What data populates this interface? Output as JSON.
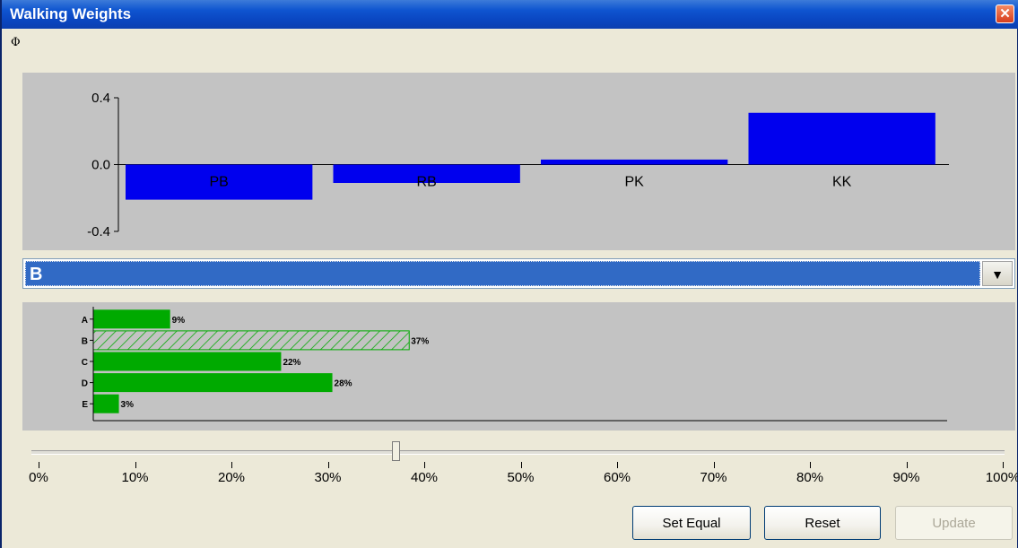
{
  "window": {
    "title": "Walking Weights",
    "close_glyph": "✕",
    "phi_symbol": "Φ"
  },
  "chart_data": [
    {
      "type": "bar",
      "categories": [
        "PB",
        "RB",
        "PK",
        "KK"
      ],
      "values": [
        -0.21,
        -0.11,
        0.03,
        0.31
      ],
      "ylim": [
        -0.4,
        0.4
      ],
      "yticks": [
        0.4,
        0.0,
        -0.4
      ],
      "ytick_labels": [
        "0.4",
        "0.0",
        "-0.4"
      ],
      "bar_color": "#0000ee",
      "background": "#c3c3c3",
      "grid": false
    },
    {
      "type": "bar",
      "orientation": "horizontal",
      "categories": [
        "A",
        "B",
        "C",
        "D",
        "E"
      ],
      "values": [
        9,
        37,
        22,
        28,
        3
      ],
      "value_labels": [
        "9%",
        "37%",
        "22%",
        "28%",
        "3%"
      ],
      "xlim": [
        0,
        100
      ],
      "selected_category": "B",
      "bar_color": "#00aa00",
      "selected_pattern": "hatched",
      "background": "#c3c3c3",
      "grid": false
    }
  ],
  "combo": {
    "selected": "B",
    "arrow_glyph": "▼"
  },
  "slider": {
    "value_percent": 37,
    "ticks": [
      "0%",
      "10%",
      "20%",
      "30%",
      "40%",
      "50%",
      "60%",
      "70%",
      "80%",
      "90%",
      "100%"
    ]
  },
  "buttons": {
    "set_equal": "Set Equal",
    "reset": "Reset",
    "update": "Update"
  }
}
